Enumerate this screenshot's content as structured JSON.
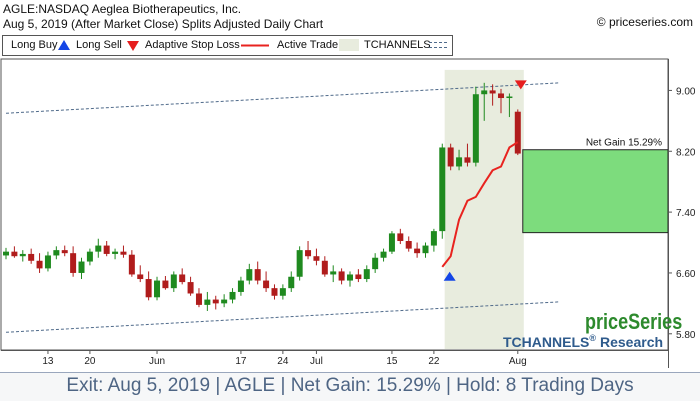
{
  "header": {
    "title": "AGLE:NASDAQ Aeglea Biotherapeutics, Inc.",
    "subtitle": "Aug 5, 2019 (After Market Close)  Splits Adjusted Daily Chart",
    "copyright": "© priceseries.com"
  },
  "legend": {
    "long_buy": "Long Buy",
    "long_sell": "Long Sell",
    "adaptive_stop": "Adaptive Stop Loss",
    "active_trade": "Active Trade",
    "tchannels": "TCHANNELS"
  },
  "colors": {
    "up": "#1f8a1f",
    "down": "#b01c1c",
    "stop": "#e8231f",
    "buy_arrow": "#1446e6",
    "sell_arrow": "#e61e1e",
    "active_trade_bg": "#e8ecde",
    "gain_box": "#7ddc7d",
    "channel": "#4f6a8a",
    "brand_green": "#2d8a2d",
    "brand_blue": "#2f5b8c"
  },
  "chart_data": {
    "type": "candlestick",
    "y_ticks": [
      "9.00",
      "8.20",
      "7.40",
      "6.60",
      "5.80"
    ],
    "ylim": [
      5.6,
      9.4
    ],
    "x_ticks": [
      {
        "label": "13",
        "index": 5
      },
      {
        "label": "20",
        "index": 10
      },
      {
        "label": "Jun",
        "index": 18
      },
      {
        "label": "17",
        "index": 28
      },
      {
        "label": "24",
        "index": 33
      },
      {
        "label": "Jul",
        "index": 37
      },
      {
        "label": "15",
        "index": 46
      },
      {
        "label": "22",
        "index": 51
      },
      {
        "label": "Aug",
        "index": 61
      }
    ],
    "candles": [
      [
        6.83,
        6.93,
        6.78,
        6.88
      ],
      [
        6.88,
        6.95,
        6.8,
        6.82
      ],
      [
        6.82,
        6.9,
        6.75,
        6.85
      ],
      [
        6.85,
        6.92,
        6.72,
        6.76
      ],
      [
        6.76,
        6.86,
        6.6,
        6.66
      ],
      [
        6.66,
        6.88,
        6.62,
        6.83
      ],
      [
        6.83,
        6.95,
        6.78,
        6.9
      ],
      [
        6.9,
        6.96,
        6.82,
        6.86
      ],
      [
        6.86,
        6.95,
        6.55,
        6.6
      ],
      [
        6.6,
        6.8,
        6.52,
        6.75
      ],
      [
        6.75,
        6.92,
        6.7,
        6.88
      ],
      [
        6.88,
        7.05,
        6.8,
        6.96
      ],
      [
        6.96,
        7.02,
        6.82,
        6.85
      ],
      [
        6.85,
        6.92,
        6.78,
        6.88
      ],
      [
        6.88,
        6.96,
        6.8,
        6.84
      ],
      [
        6.84,
        6.9,
        6.55,
        6.58
      ],
      [
        6.58,
        6.7,
        6.48,
        6.52
      ],
      [
        6.52,
        6.62,
        6.24,
        6.28
      ],
      [
        6.28,
        6.55,
        6.24,
        6.5
      ],
      [
        6.5,
        6.56,
        6.38,
        6.4
      ],
      [
        6.4,
        6.62,
        6.35,
        6.58
      ],
      [
        6.58,
        6.66,
        6.45,
        6.48
      ],
      [
        6.48,
        6.55,
        6.3,
        6.33
      ],
      [
        6.33,
        6.4,
        6.15,
        6.18
      ],
      [
        6.18,
        6.35,
        6.1,
        6.25
      ],
      [
        6.25,
        6.3,
        6.12,
        6.2
      ],
      [
        6.2,
        6.32,
        6.15,
        6.25
      ],
      [
        6.25,
        6.4,
        6.2,
        6.35
      ],
      [
        6.35,
        6.55,
        6.3,
        6.5
      ],
      [
        6.5,
        6.72,
        6.45,
        6.65
      ],
      [
        6.65,
        6.75,
        6.45,
        6.5
      ],
      [
        6.5,
        6.62,
        6.35,
        6.4
      ],
      [
        6.4,
        6.45,
        6.25,
        6.3
      ],
      [
        6.3,
        6.45,
        6.25,
        6.4
      ],
      [
        6.4,
        6.62,
        6.35,
        6.55
      ],
      [
        6.55,
        6.95,
        6.5,
        6.9
      ],
      [
        6.9,
        7.02,
        6.78,
        6.82
      ],
      [
        6.82,
        6.92,
        6.7,
        6.76
      ],
      [
        6.76,
        6.82,
        6.55,
        6.58
      ],
      [
        6.58,
        6.7,
        6.48,
        6.62
      ],
      [
        6.62,
        6.66,
        6.45,
        6.5
      ],
      [
        6.5,
        6.62,
        6.42,
        6.58
      ],
      [
        6.58,
        6.65,
        6.48,
        6.52
      ],
      [
        6.52,
        6.7,
        6.48,
        6.65
      ],
      [
        6.65,
        6.86,
        6.6,
        6.8
      ],
      [
        6.8,
        6.92,
        6.75,
        6.88
      ],
      [
        6.88,
        7.15,
        6.85,
        7.12
      ],
      [
        7.12,
        7.18,
        6.98,
        7.02
      ],
      [
        7.02,
        7.08,
        6.88,
        6.92
      ],
      [
        6.92,
        7.0,
        6.8,
        6.86
      ],
      [
        6.86,
        7.0,
        6.8,
        6.96
      ],
      [
        6.96,
        7.18,
        6.88,
        7.15
      ],
      [
        7.15,
        8.3,
        7.05,
        8.25
      ],
      [
        8.25,
        8.3,
        7.95,
        8.0
      ],
      [
        8.0,
        8.22,
        7.95,
        8.12
      ],
      [
        8.12,
        8.3,
        8.0,
        8.05
      ],
      [
        8.05,
        9.05,
        8.0,
        8.95
      ],
      [
        8.95,
        9.1,
        8.6,
        9.0
      ],
      [
        9.0,
        9.08,
        8.8,
        8.96
      ],
      [
        8.96,
        9.02,
        8.7,
        8.9
      ],
      [
        8.9,
        8.96,
        8.65,
        8.92
      ],
      [
        8.72,
        8.75,
        8.15,
        8.17
      ]
    ],
    "stop_loss": [
      {
        "index": 52,
        "value": 6.68
      },
      {
        "index": 53,
        "value": 6.82
      },
      {
        "index": 54,
        "value": 7.3
      },
      {
        "index": 55,
        "value": 7.55
      },
      {
        "index": 56,
        "value": 7.6
      },
      {
        "index": 57,
        "value": 7.78
      },
      {
        "index": 58,
        "value": 7.95
      },
      {
        "index": 59,
        "value": 8.0
      },
      {
        "index": 60,
        "value": 8.25
      },
      {
        "index": 61,
        "value": 8.32
      }
    ],
    "channel_upper": [
      {
        "index": 0,
        "value": 8.7
      },
      {
        "index": 66,
        "value": 9.1
      }
    ],
    "channel_lower": [
      {
        "index": 0,
        "value": 5.82
      },
      {
        "index": 66,
        "value": 6.22
      }
    ],
    "active_trade_range": [
      53,
      61
    ],
    "buy_signal": {
      "index": 53,
      "value": 6.55
    },
    "sell_signal": {
      "index": 61,
      "value": 9.08
    },
    "net_gain": {
      "label": "Net Gain 15.29%",
      "from": 7.13,
      "to": 8.22
    }
  },
  "brand": {
    "name": "priceSeries",
    "research": "TCHANNELS",
    "research_suffix": "Research",
    "registered": "®"
  },
  "footer": {
    "text": "Exit: Aug 5, 2019 | AGLE | Net Gain: 15.29% | Hold: 8 Trading Days"
  }
}
